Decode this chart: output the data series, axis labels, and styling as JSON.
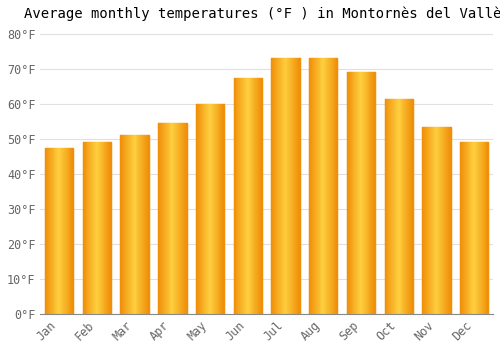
{
  "title": "Average monthly temperatures (°F ) in Montornès del Vallès",
  "months": [
    "Jan",
    "Feb",
    "Mar",
    "Apr",
    "May",
    "Jun",
    "Jul",
    "Aug",
    "Sep",
    "Oct",
    "Nov",
    "Dec"
  ],
  "values": [
    47.5,
    49.0,
    51.0,
    54.5,
    60.0,
    67.5,
    73.0,
    73.0,
    69.0,
    61.5,
    53.5,
    49.0
  ],
  "bar_color_center": "#FFD040",
  "bar_color_edge": "#F0900A",
  "background_color": "#FFFFFF",
  "grid_color": "#E0E0E0",
  "ylim": [
    0,
    82
  ],
  "yticks": [
    0,
    10,
    20,
    30,
    40,
    50,
    60,
    70,
    80
  ],
  "title_fontsize": 10,
  "tick_fontsize": 8.5,
  "bar_width": 0.75
}
